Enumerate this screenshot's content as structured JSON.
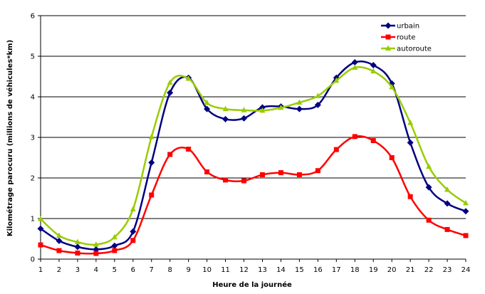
{
  "chart_data": {
    "type": "line",
    "xlabel": "Heure de la journée",
    "ylabel": "Kilométrage parocuru (millions de véhicules*km)",
    "x": [
      1,
      2,
      3,
      4,
      5,
      6,
      7,
      8,
      9,
      10,
      11,
      12,
      13,
      14,
      15,
      16,
      17,
      18,
      19,
      20,
      21,
      22,
      23,
      24
    ],
    "xlim": [
      1,
      24
    ],
    "ylim": [
      0,
      6
    ],
    "yticks": [
      0,
      1,
      2,
      3,
      4,
      5,
      6
    ],
    "grid": "horizontal",
    "legend_position": "top-right",
    "series": [
      {
        "name": "urbain",
        "color": "#000080",
        "marker": "diamond",
        "values": [
          0.75,
          0.45,
          0.3,
          0.24,
          0.33,
          0.68,
          2.38,
          4.1,
          4.47,
          3.7,
          3.45,
          3.47,
          3.74,
          3.76,
          3.7,
          3.8,
          4.47,
          4.85,
          4.78,
          4.33,
          2.87,
          1.77,
          1.37,
          1.18
        ]
      },
      {
        "name": "route",
        "color": "#ff0000",
        "marker": "square",
        "values": [
          0.35,
          0.21,
          0.15,
          0.14,
          0.21,
          0.46,
          1.58,
          2.58,
          2.71,
          2.15,
          1.95,
          1.93,
          2.08,
          2.13,
          2.08,
          2.18,
          2.7,
          3.02,
          2.92,
          2.5,
          1.54,
          0.96,
          0.73,
          0.58
        ]
      },
      {
        "name": "autoroute",
        "color": "#99cc00",
        "marker": "triangle",
        "values": [
          0.99,
          0.58,
          0.42,
          0.36,
          0.54,
          1.23,
          3.01,
          4.35,
          4.45,
          3.85,
          3.7,
          3.67,
          3.66,
          3.73,
          3.86,
          4.02,
          4.4,
          4.72,
          4.63,
          4.24,
          3.36,
          2.28,
          1.71,
          1.38
        ]
      }
    ]
  }
}
